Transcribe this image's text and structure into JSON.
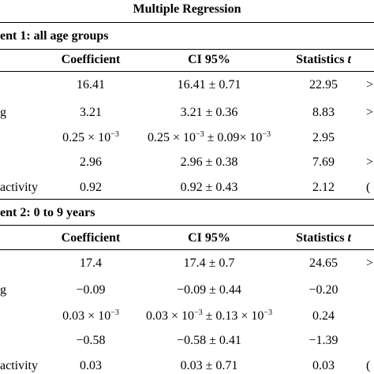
{
  "table": {
    "title": "Multiple Regression",
    "experiments": [
      {
        "label": "ent 1: all age groups",
        "headers": {
          "coefficient": "Coefficient",
          "ci": "CI 95%",
          "stat_prefix": "Statistics ",
          "stat_var": "t"
        },
        "rows": [
          {
            "label": "",
            "coef": "16.41",
            "ci": "16.41 ± 0.71",
            "t": "22.95",
            "edge": ">"
          },
          {
            "label": "g",
            "coef": "3.21",
            "ci": "3.21 ± 0.36",
            "t": "8.83",
            "edge": ">"
          },
          {
            "label": "",
            "coef_base": "0.25 × 10",
            "coef_exp": "−3",
            "ci_base": "0.25 × 10",
            "ci_exp": "−3",
            "ci_tail": " ± 0.09× 10",
            "ci_tail_exp": "−3",
            "t": "2.95",
            "edge": ""
          },
          {
            "label": "",
            "coef": "2.96",
            "ci": "2.96 ± 0.38",
            "t": "7.69",
            "edge": ">"
          },
          {
            "label": "activity",
            "coef": "0.92",
            "ci": "0.92 ± 0.43",
            "t": "2.12",
            "edge": "("
          }
        ]
      },
      {
        "label": "ent 2: 0 to 9 years",
        "headers": {
          "coefficient": "Coefficient",
          "ci": "CI 95%",
          "stat_prefix": "Statistics ",
          "stat_var": "t"
        },
        "rows": [
          {
            "label": "",
            "coef": "17.4",
            "ci": "17.4 ± 0.7",
            "t": "24.65",
            "edge": ">"
          },
          {
            "label": "g",
            "coef": "−0.09",
            "ci": "−0.09 ± 0.44",
            "t": "−0.20",
            "edge": ""
          },
          {
            "label": "",
            "coef_base": "0.03 × 10",
            "coef_exp": "−3",
            "ci_base": "0.03 × 10",
            "ci_exp": "−3",
            "ci_tail": " ± 0.13 × 10",
            "ci_tail_exp": "−3",
            "t": "0.24",
            "edge": ""
          },
          {
            "label": "",
            "coef": "−0.58",
            "ci": "−0.58 ± 0.41",
            "t": "−1.39",
            "edge": ""
          },
          {
            "label": "activity",
            "coef": "0.03",
            "ci": "0.03 ± 0.71",
            "t": "0.03",
            "edge": "("
          }
        ]
      }
    ]
  }
}
